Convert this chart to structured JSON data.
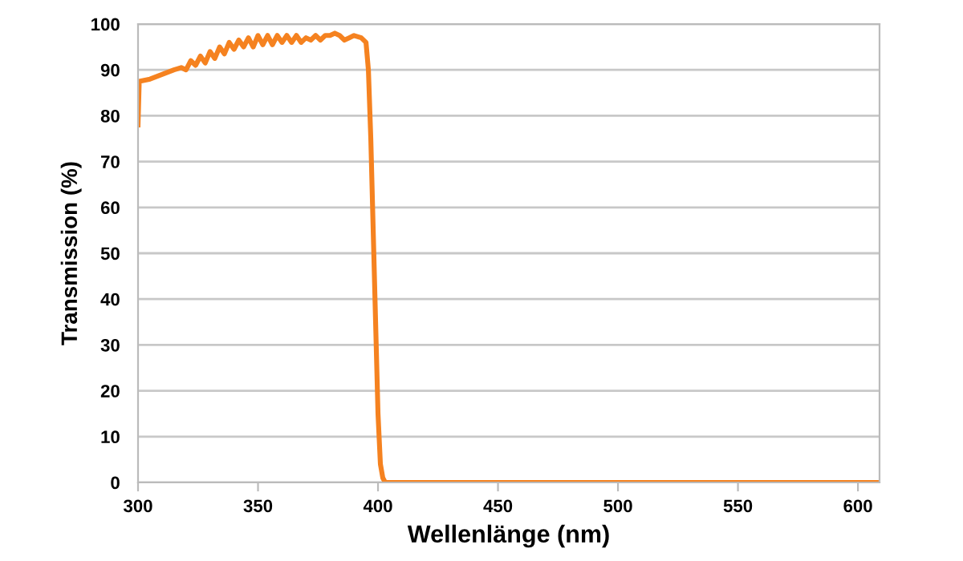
{
  "chart_data": {
    "type": "line",
    "xlabel": "Wellenlänge (nm)",
    "ylabel": "Transmission (%)",
    "xlim": [
      300,
      609
    ],
    "xticks": [
      300,
      350,
      400,
      450,
      500,
      550,
      600
    ],
    "ylim": [
      0,
      100
    ],
    "yticks": [
      0,
      10,
      20,
      30,
      40,
      50,
      60,
      70,
      80,
      90,
      100
    ],
    "grid": "y",
    "legend": false,
    "marker": "none",
    "line_style": "solid",
    "series": [
      {
        "color": "#f58220",
        "x": [
          300,
          300.5,
          305,
          310,
          315,
          318,
          320,
          322,
          324,
          326,
          328,
          330,
          332,
          334,
          336,
          338,
          340,
          342,
          344,
          346,
          348,
          350,
          352,
          354,
          356,
          358,
          360,
          362,
          364,
          366,
          368,
          370,
          372,
          374,
          376,
          378,
          380,
          382,
          384,
          386,
          388,
          390,
          393,
          395,
          396,
          397,
          398,
          399,
          400,
          401,
          402,
          403,
          450,
          500,
          550,
          608
        ],
        "values": [
          78,
          87.5,
          88,
          89,
          90,
          90.5,
          90,
          92,
          91,
          93,
          91.5,
          94,
          92.5,
          95,
          93.5,
          96,
          94.5,
          96.5,
          95,
          97,
          95,
          97.5,
          95.5,
          97.5,
          95.5,
          97.5,
          96,
          97.5,
          96,
          97.5,
          96,
          97,
          96.5,
          97.5,
          96.5,
          97.5,
          97.5,
          98,
          97.5,
          96.5,
          97,
          97.5,
          97,
          96,
          90,
          75,
          55,
          35,
          15,
          4,
          1,
          0,
          0,
          0,
          0,
          0
        ]
      }
    ]
  }
}
